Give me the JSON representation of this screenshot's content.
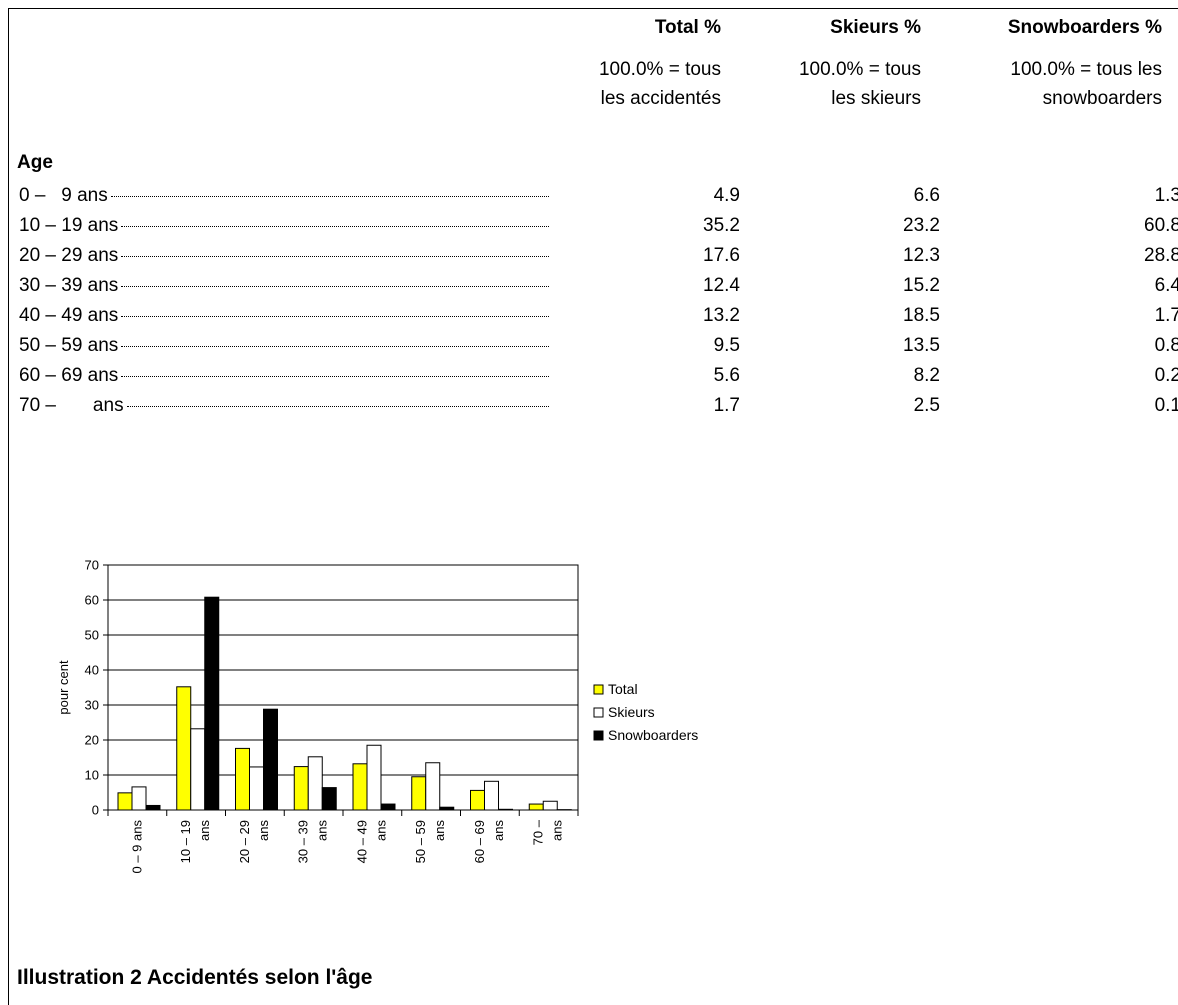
{
  "table": {
    "headers": [
      {
        "title": "Total %",
        "subtitle_lines": [
          "100.0% = tous",
          "les accidentés"
        ]
      },
      {
        "title": "Skieurs %",
        "subtitle_lines": [
          "100.0% = tous",
          "les skieurs"
        ]
      },
      {
        "title": "Snowboarders %",
        "subtitle_lines": [
          "100.0% = tous les",
          "snowboarders"
        ]
      }
    ],
    "section_label": "Age",
    "rows": [
      {
        "label": "0 –   9 ans",
        "total": "4.9",
        "skieurs": "6.6",
        "snowboarders": "1.3"
      },
      {
        "label": "10 – 19 ans",
        "total": "35.2",
        "skieurs": "23.2",
        "snowboarders": "60.8"
      },
      {
        "label": "20 – 29 ans",
        "total": "17.6",
        "skieurs": "12.3",
        "snowboarders": "28.8"
      },
      {
        "label": "30 – 39 ans",
        "total": "12.4",
        "skieurs": "15.2",
        "snowboarders": "6.4"
      },
      {
        "label": "40 – 49 ans",
        "total": "13.2",
        "skieurs": "18.5",
        "snowboarders": "1.7"
      },
      {
        "label": "50 – 59 ans",
        "total": "9.5",
        "skieurs": "13.5",
        "snowboarders": "0.8"
      },
      {
        "label": "60 – 69 ans",
        "total": "5.6",
        "skieurs": "8.2",
        "snowboarders": "0.2"
      },
      {
        "label": "70 –       ans",
        "total": "1.7",
        "skieurs": "2.5",
        "snowboarders": "0.1"
      }
    ]
  },
  "chart_data": {
    "type": "bar",
    "categories": [
      [
        "0 – 9 ans"
      ],
      [
        "10 – 19",
        "ans"
      ],
      [
        "20 – 29",
        "ans"
      ],
      [
        "30 – 39",
        "ans"
      ],
      [
        "40 – 49",
        "ans"
      ],
      [
        "50 – 59",
        "ans"
      ],
      [
        "60 – 69",
        "ans"
      ],
      [
        "70 –",
        "ans"
      ]
    ],
    "series": [
      {
        "name": "Total",
        "color": "#ffff00",
        "values": [
          4.9,
          35.2,
          17.6,
          12.4,
          13.2,
          9.5,
          5.6,
          1.7
        ]
      },
      {
        "name": "Skieurs",
        "color": "#ffffff",
        "values": [
          6.6,
          23.2,
          12.3,
          15.2,
          18.5,
          13.5,
          8.2,
          2.5
        ]
      },
      {
        "name": "Snowboarders",
        "color": "#000000",
        "values": [
          1.3,
          60.8,
          28.8,
          6.4,
          1.7,
          0.8,
          0.2,
          0.1
        ]
      }
    ],
    "ylabel": "pour cent",
    "ylim": [
      0,
      70
    ],
    "yticks": [
      "0",
      "10",
      "20",
      "30",
      "40",
      "50",
      "60",
      "70"
    ],
    "grid": true,
    "legend_position": "right"
  },
  "caption": "Illustration 2 Accidentés selon l'âge"
}
